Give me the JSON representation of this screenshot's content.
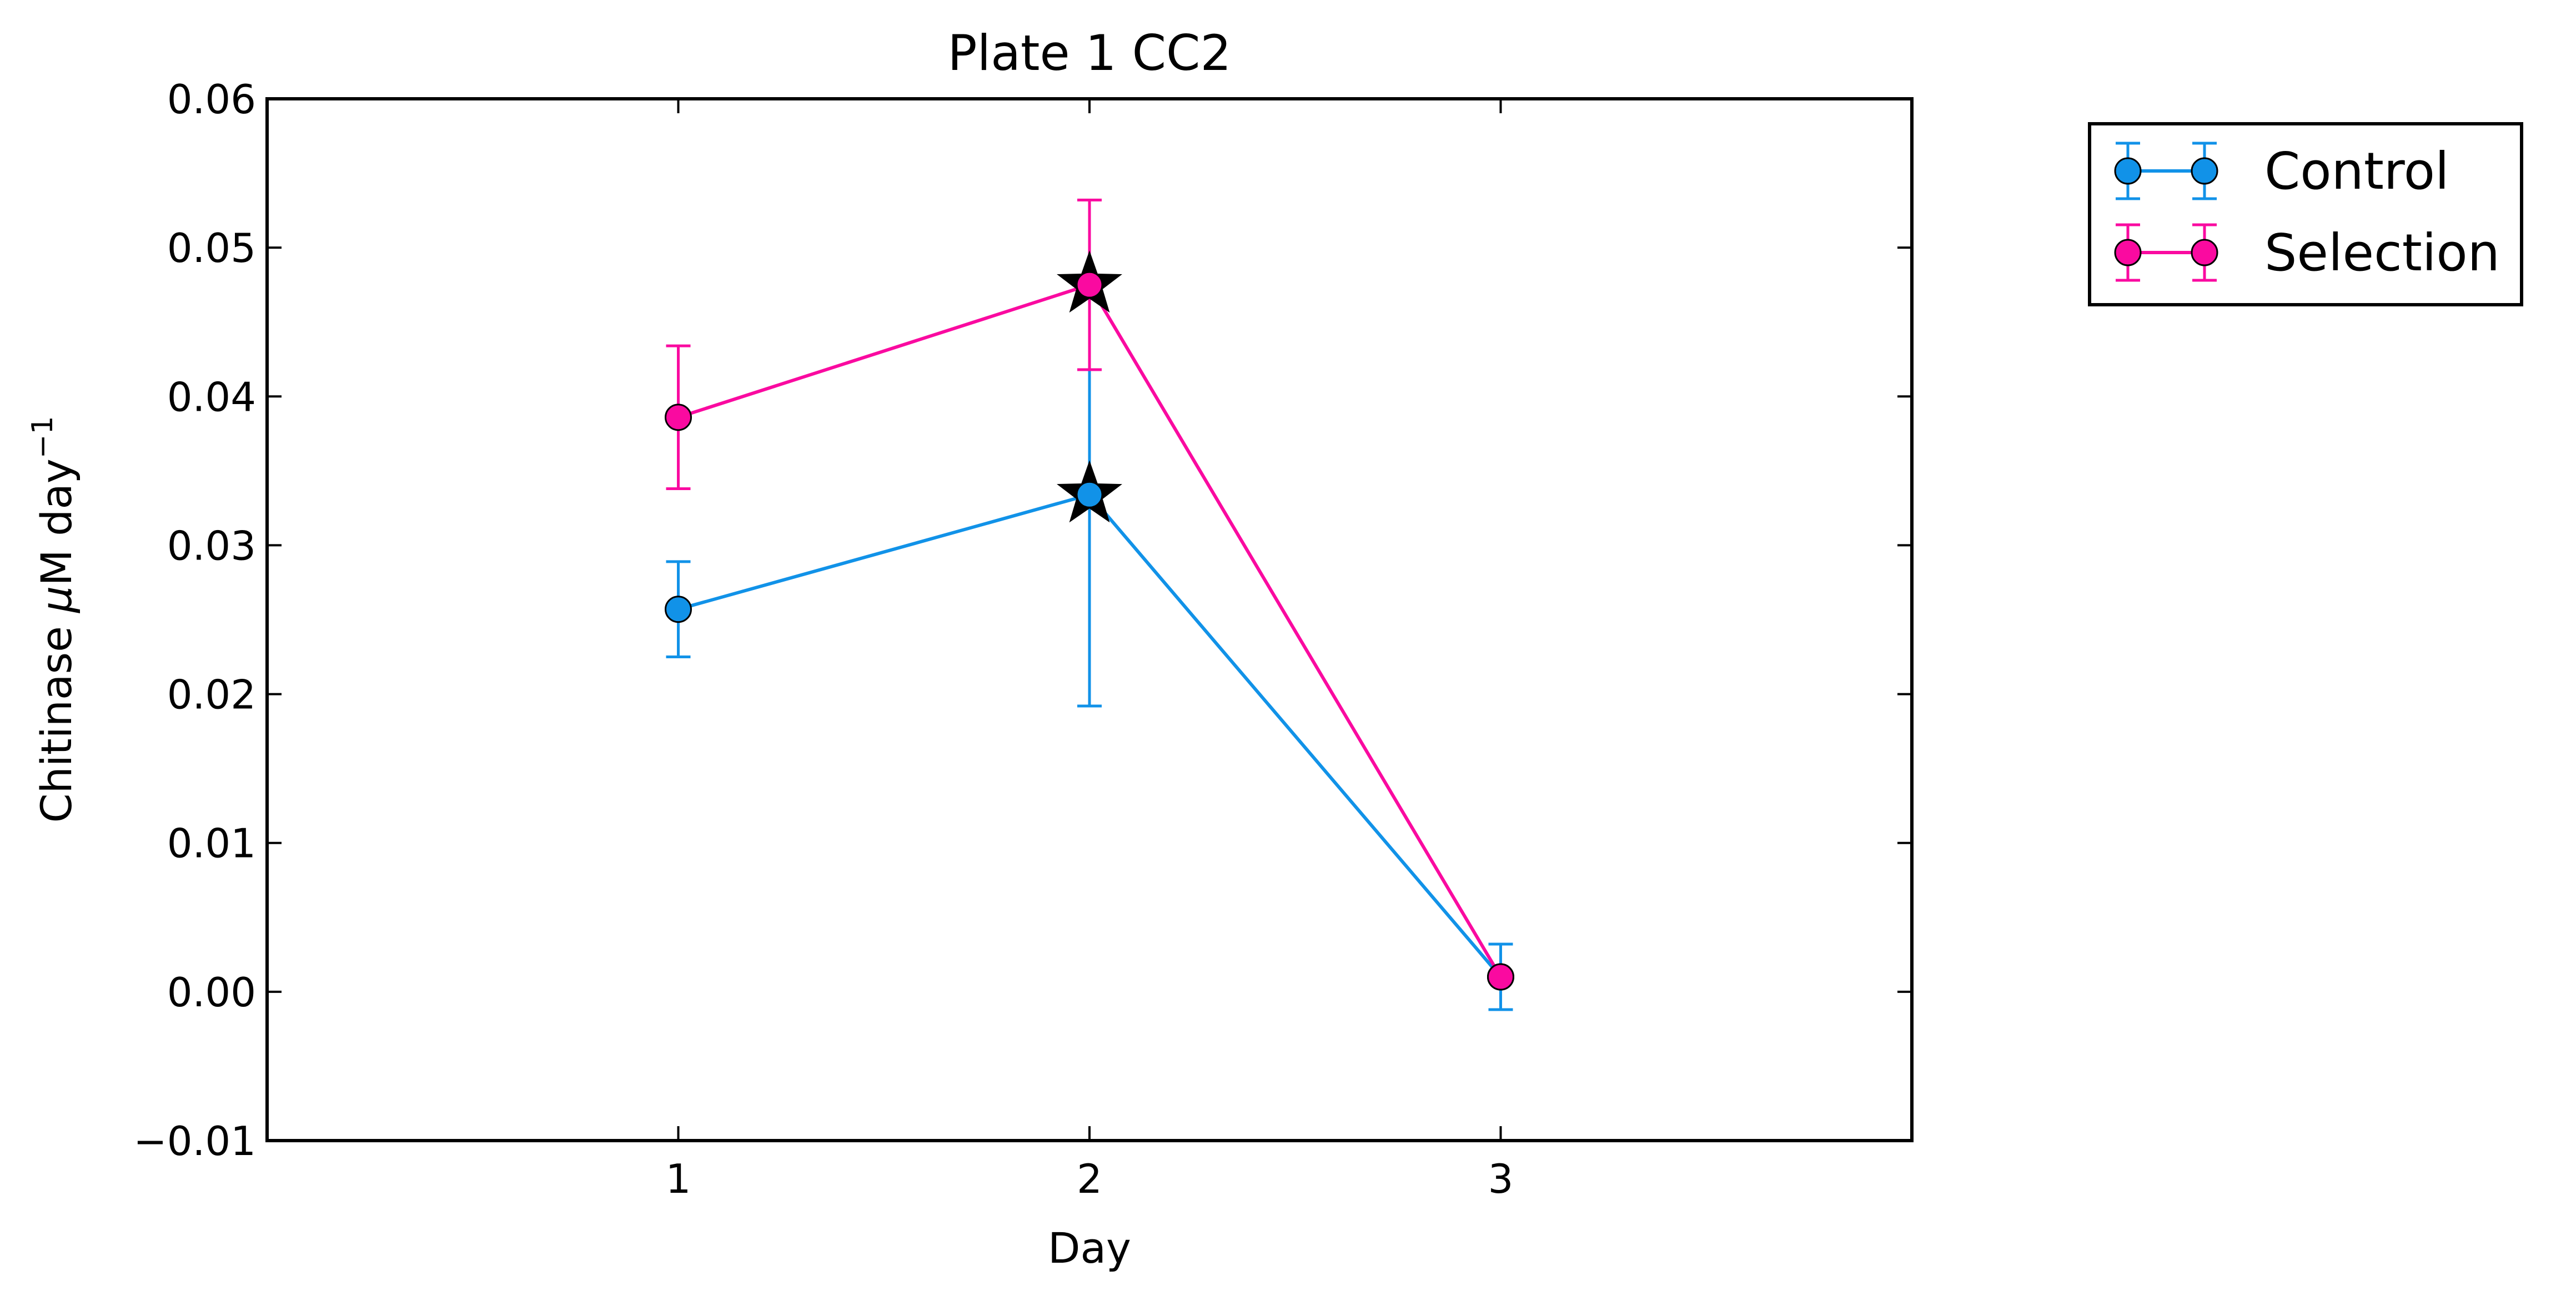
{
  "chart_data": {
    "type": "line",
    "title": "Plate 1 CC2",
    "xlabel": "Day",
    "ylabel_main": "Chitinase ",
    "ylabel_mu": "μ",
    "ylabel_rest": "M day",
    "ylabel_sup": "−1",
    "xlim": [
      0,
      4
    ],
    "ylim": [
      -0.01,
      0.06
    ],
    "x_ticks": [
      1,
      2,
      3
    ],
    "x_tick_labels": [
      "1",
      "2",
      "3"
    ],
    "y_ticks": [
      -0.01,
      0.0,
      0.01,
      0.02,
      0.03,
      0.04,
      0.05,
      0.06
    ],
    "y_tick_labels": [
      "−0.01",
      "0.00",
      "0.01",
      "0.02",
      "0.03",
      "0.04",
      "0.05",
      "0.06"
    ],
    "grid": false,
    "legend_position": "outside top-right",
    "series": [
      {
        "name": "Control",
        "color": "#1192e8",
        "x": [
          1,
          2,
          3
        ],
        "y": [
          0.0257,
          0.0334,
          0.001
        ],
        "yerr": [
          0.0032,
          0.0142,
          0.0022
        ]
      },
      {
        "name": "Selection",
        "color": "#fa0aa0",
        "x": [
          1,
          2,
          3
        ],
        "y": [
          0.0386,
          0.0475,
          0.001
        ],
        "yerr": [
          0.0048,
          0.0057,
          0.0
        ]
      }
    ],
    "significance_markers": [
      {
        "series": "Control",
        "x": 2,
        "y": 0.0334,
        "marker": "star"
      },
      {
        "series": "Selection",
        "x": 2,
        "y": 0.0475,
        "marker": "star"
      }
    ]
  }
}
